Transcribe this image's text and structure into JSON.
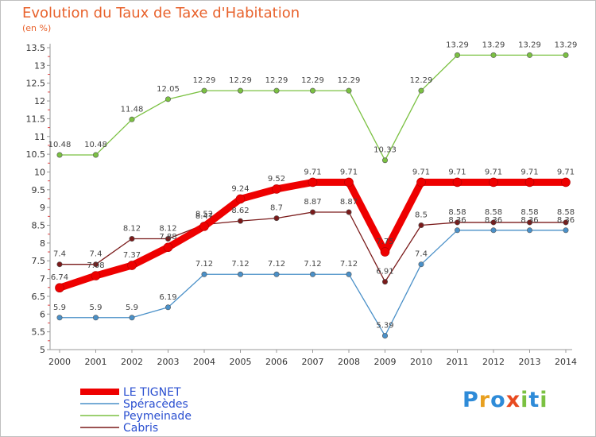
{
  "header": {
    "title": "Evolution du Taux de Taxe d'Habitation",
    "unit": "(en %)"
  },
  "logo": {
    "text": "Proxiti",
    "colors": [
      "#2e8bd8",
      "#e8a020",
      "#2e8bd8",
      "#e84a20",
      "#7bc142",
      "#2e8bd8",
      "#7bc142"
    ]
  },
  "chart_data": {
    "type": "line",
    "title": "Evolution du Taux de Taxe d'Habitation",
    "ylabel": "(en %)",
    "xlabel": "",
    "x": [
      "2000",
      "2001",
      "2002",
      "2003",
      "2004",
      "2005",
      "2006",
      "2007",
      "2008",
      "2009",
      "2010",
      "2011",
      "2012",
      "2013",
      "2014"
    ],
    "ylim": [
      5,
      13.5
    ],
    "yticks": [
      "5",
      "5.5",
      "6",
      "6.5",
      "7",
      "7.5",
      "8",
      "8.5",
      "9",
      "9.5",
      "10",
      "10.5",
      "11",
      "11.5",
      "12",
      "12.5",
      "13",
      "13.5"
    ],
    "grid": false,
    "legend": "bottom-left",
    "series": [
      {
        "name": "LE TIGNET",
        "color": "#ee0000",
        "width": 9,
        "values": [
          6.74,
          7.08,
          7.37,
          7.88,
          8.47,
          9.24,
          9.52,
          9.71,
          9.71,
          7.75,
          9.71,
          9.71,
          9.71,
          9.71,
          9.71
        ],
        "labels": [
          "6.74",
          "7.08",
          "7.37",
          "7.88",
          "8.47",
          "9.24",
          "9.52",
          "9.71",
          "9.71",
          "7.75",
          "9.71",
          "9.71",
          "9.71",
          "9.71",
          "9.71"
        ]
      },
      {
        "name": "Spéracèdes",
        "color": "#4a90c8",
        "width": 1.3,
        "values": [
          5.9,
          5.9,
          5.9,
          6.19,
          7.12,
          7.12,
          7.12,
          7.12,
          7.12,
          5.39,
          7.4,
          8.36,
          8.36,
          8.36,
          8.36
        ],
        "labels": [
          "5.9",
          "5.9",
          "5.9",
          "6.19",
          "7.12",
          "7.12",
          "7.12",
          "7.12",
          "7.12",
          "5.39",
          "7.4",
          "8.36",
          "8.36",
          "8.36",
          "8.36"
        ]
      },
      {
        "name": "Peymeinade",
        "color": "#7bc142",
        "width": 1.3,
        "values": [
          10.48,
          10.48,
          11.48,
          12.05,
          12.29,
          12.29,
          12.29,
          12.29,
          12.29,
          10.33,
          12.29,
          13.29,
          13.29,
          13.29,
          13.29
        ],
        "labels": [
          "10.48",
          "10.48",
          "11.48",
          "12.05",
          "12.29",
          "12.29",
          "12.29",
          "12.29",
          "12.29",
          "10.33",
          "12.29",
          "13.29",
          "13.29",
          "13.29",
          "13.29"
        ]
      },
      {
        "name": "Cabris",
        "color": "#7a1a1a",
        "width": 1.3,
        "values": [
          7.4,
          7.4,
          8.12,
          8.12,
          8.52,
          8.62,
          8.7,
          8.87,
          8.87,
          6.91,
          8.5,
          8.58,
          8.58,
          8.58,
          8.58
        ],
        "labels": [
          "7.4",
          "7.4",
          "8.12",
          "8.12",
          "8.52",
          "8.62",
          "8.7",
          "8.87",
          "8.87",
          "6.91",
          "8.5",
          "8.58",
          "8.58",
          "8.58",
          "8.58"
        ]
      }
    ]
  }
}
